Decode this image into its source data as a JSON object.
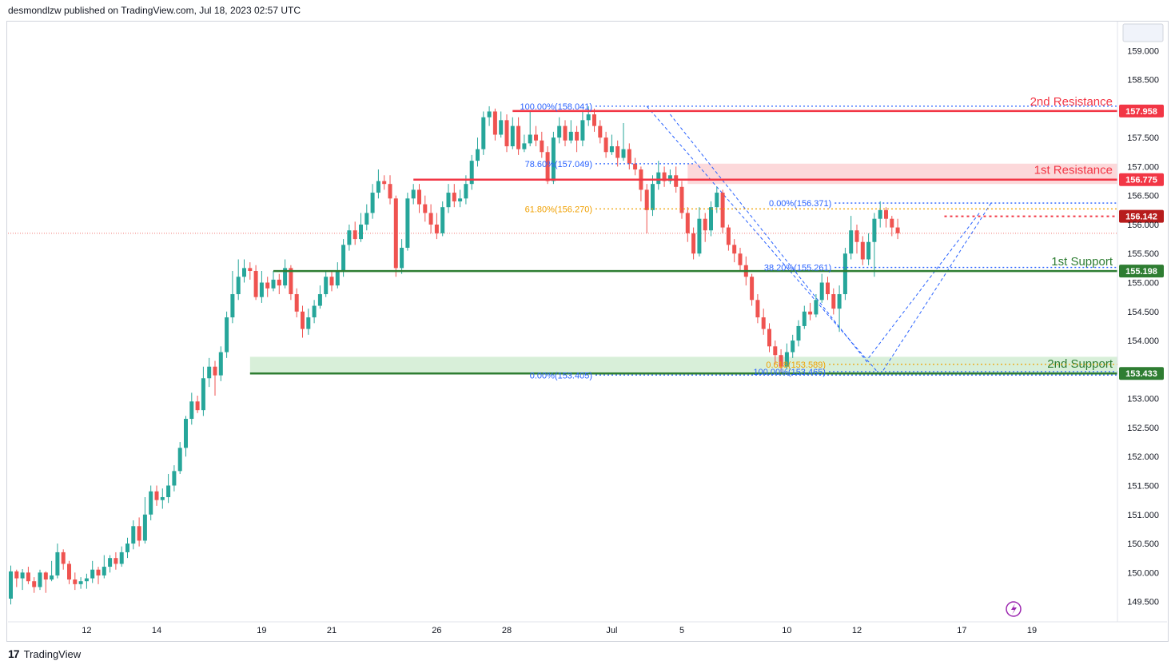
{
  "header": {
    "publisher_line": "desmondlzw published on TradingView.com, Jul 18, 2023 02:57 UTC"
  },
  "footer": {
    "brand": "TradingView",
    "logo_glyph": "17"
  },
  "colors": {
    "up": "#26a69a",
    "down": "#ef5350",
    "resistance": "#f23645",
    "support": "#2e7d32",
    "fib_blue": "#2962ff",
    "fib_orange": "#f0a000",
    "last_price": "#b71c1c",
    "resistance_zone": "#fcd8da",
    "support_zone": "#d8efd9"
  },
  "chart_data": {
    "type": "candlestick",
    "ylim": [
      149.15,
      159.5
    ],
    "y_ticks": [
      {
        "label": "159.000",
        "value": 159.0
      },
      {
        "label": "158.500",
        "value": 158.5
      },
      {
        "label": "158.000",
        "value": 158.0
      },
      {
        "label": "157.500",
        "value": 157.5
      },
      {
        "label": "157.000",
        "value": 157.0
      },
      {
        "label": "156.500",
        "value": 156.5
      },
      {
        "label": "156.000",
        "value": 156.0
      },
      {
        "label": "155.500",
        "value": 155.5
      },
      {
        "label": "155.000",
        "value": 155.0
      },
      {
        "label": "154.500",
        "value": 154.5
      },
      {
        "label": "154.000",
        "value": 154.0
      },
      {
        "label": "153.500",
        "value": 153.5
      },
      {
        "label": "153.000",
        "value": 153.0
      },
      {
        "label": "152.500",
        "value": 152.5
      },
      {
        "label": "152.000",
        "value": 152.0
      },
      {
        "label": "151.500",
        "value": 151.5
      },
      {
        "label": "151.000",
        "value": 151.0
      },
      {
        "label": "150.500",
        "value": 150.5
      },
      {
        "label": "150.000",
        "value": 150.0
      },
      {
        "label": "149.500",
        "value": 149.5
      }
    ],
    "x_ticks": [
      {
        "label": "12",
        "idx": 13
      },
      {
        "label": "14",
        "idx": 25
      },
      {
        "label": "19",
        "idx": 43
      },
      {
        "label": "21",
        "idx": 55
      },
      {
        "label": "26",
        "idx": 73
      },
      {
        "label": "28",
        "idx": 85
      },
      {
        "label": "Jul",
        "idx": 103
      },
      {
        "label": "5",
        "idx": 115
      },
      {
        "label": "10",
        "idx": 133
      },
      {
        "label": "12",
        "idx": 145
      },
      {
        "label": "17",
        "idx": 163
      },
      {
        "label": "19",
        "idx": 175
      }
    ],
    "levels": [
      {
        "name": "2nd Resistance",
        "price_label": "157.958",
        "value": 157.958,
        "kind": "resistance",
        "from_idx": 86
      },
      {
        "name": "1st Resistance",
        "price_label": "156.775",
        "value": 156.775,
        "kind": "resistance",
        "from_idx": 69
      },
      {
        "name": "1st Support",
        "price_label": "155.198",
        "value": 155.198,
        "kind": "support",
        "from_idx": 45
      },
      {
        "name": "2nd Support",
        "price_label": "153.433",
        "value": 153.433,
        "kind": "support",
        "from_idx": 41
      }
    ],
    "zones": [
      {
        "kind": "resistance",
        "from_idx": 116,
        "y_top": 157.05,
        "y_bottom": 156.7
      },
      {
        "kind": "support",
        "from_idx": 41,
        "y_top": 153.72,
        "y_bottom": 153.43
      }
    ],
    "last_price": {
      "label": "156.142",
      "value": 156.142,
      "from_idx": 160
    },
    "current_close_line": 155.85,
    "fib_labels": [
      {
        "text": "100.00%(158.041)",
        "value": 158.041,
        "color": "blue",
        "idx": 95,
        "line_to": 999
      },
      {
        "text": "78.60%(157.049)",
        "value": 157.049,
        "color": "blue",
        "idx": 95,
        "line_to": 117
      },
      {
        "text": "61.80%(156.270)",
        "value": 156.27,
        "color": "orange",
        "idx": 95,
        "line_to": 999
      },
      {
        "text": "0.00%(156.371)",
        "value": 156.371,
        "color": "blue",
        "idx": 136,
        "line_to": 999
      },
      {
        "text": "38.20%(155.261)",
        "value": 155.261,
        "color": "blue",
        "idx": 136,
        "line_to": 999
      },
      {
        "text": "0.618(153.589)",
        "value": 153.589,
        "color": "orange",
        "idx": 135,
        "line_to": 999
      },
      {
        "text": "100.00%(153.465)",
        "value": 153.465,
        "color": "blue",
        "idx": 135,
        "line_to": 999
      },
      {
        "text": "0.00%(153.405)",
        "value": 153.405,
        "color": "blue",
        "idx": 95,
        "line_to": 999
      }
    ],
    "trendlines": [
      {
        "from": [
          109,
          158.041
        ],
        "to": [
          149,
          153.405
        ]
      },
      {
        "from": [
          113,
          157.9
        ],
        "to": [
          147,
          153.6
        ]
      },
      {
        "from": [
          149,
          153.405
        ],
        "to": [
          168,
          156.371
        ]
      },
      {
        "from": [
          147,
          153.7
        ],
        "to": [
          166,
          156.2
        ]
      }
    ],
    "candles": [
      [
        149.55,
        150.02,
        150.12,
        149.45
      ],
      [
        150.02,
        149.9,
        150.05,
        149.75
      ],
      [
        149.9,
        150.0,
        150.06,
        149.7
      ],
      [
        150.0,
        149.85,
        150.1,
        149.8
      ],
      [
        149.85,
        149.75,
        149.92,
        149.65
      ],
      [
        149.75,
        150.0,
        150.05,
        149.7
      ],
      [
        150.0,
        149.88,
        150.02,
        149.65
      ],
      [
        149.88,
        149.95,
        150.2,
        149.85
      ],
      [
        149.95,
        150.35,
        150.5,
        149.9
      ],
      [
        150.35,
        150.15,
        150.4,
        150.05
      ],
      [
        150.15,
        149.88,
        150.2,
        149.8
      ],
      [
        149.88,
        149.8,
        150.0,
        149.7
      ],
      [
        149.8,
        149.85,
        149.92,
        149.72
      ],
      [
        149.85,
        149.9,
        149.98,
        149.72
      ],
      [
        149.9,
        150.05,
        150.2,
        149.82
      ],
      [
        150.05,
        149.95,
        150.1,
        149.8
      ],
      [
        149.95,
        150.1,
        150.3,
        149.9
      ],
      [
        150.1,
        150.25,
        150.3,
        150.0
      ],
      [
        150.25,
        150.15,
        150.35,
        150.05
      ],
      [
        150.15,
        150.35,
        150.45,
        150.1
      ],
      [
        150.35,
        150.5,
        150.6,
        150.25
      ],
      [
        150.5,
        150.8,
        150.9,
        150.4
      ],
      [
        150.8,
        150.55,
        150.95,
        150.45
      ],
      [
        150.55,
        151.0,
        151.3,
        150.5
      ],
      [
        151.0,
        151.4,
        151.5,
        150.9
      ],
      [
        151.4,
        151.25,
        151.5,
        151.15
      ],
      [
        151.25,
        151.3,
        151.45,
        151.1
      ],
      [
        151.3,
        151.5,
        151.7,
        151.2
      ],
      [
        151.5,
        151.75,
        151.85,
        151.4
      ],
      [
        151.75,
        152.15,
        152.25,
        151.7
      ],
      [
        152.15,
        152.65,
        152.7,
        152.0
      ],
      [
        152.65,
        152.95,
        153.1,
        152.55
      ],
      [
        152.95,
        152.8,
        153.05,
        152.75
      ],
      [
        152.8,
        153.35,
        153.55,
        152.7
      ],
      [
        153.35,
        153.55,
        153.7,
        153.2
      ],
      [
        153.55,
        153.4,
        153.65,
        153.05
      ],
      [
        153.4,
        153.8,
        153.9,
        153.3
      ],
      [
        153.8,
        154.4,
        154.5,
        153.7
      ],
      [
        154.4,
        154.8,
        155.2,
        154.3
      ],
      [
        154.8,
        155.1,
        155.4,
        154.7
      ],
      [
        155.1,
        155.25,
        155.4,
        155.0
      ],
      [
        155.25,
        155.2,
        155.35,
        155.05
      ],
      [
        155.2,
        154.75,
        155.3,
        154.7
      ],
      [
        154.75,
        155.0,
        155.2,
        154.65
      ],
      [
        155.0,
        154.9,
        155.1,
        154.75
      ],
      [
        154.9,
        155.05,
        155.2,
        154.85
      ],
      [
        155.05,
        154.95,
        155.15,
        154.8
      ],
      [
        154.95,
        155.25,
        155.4,
        154.9
      ],
      [
        155.25,
        154.8,
        155.3,
        154.7
      ],
      [
        154.8,
        154.5,
        154.9,
        154.4
      ],
      [
        154.5,
        154.2,
        154.6,
        154.05
      ],
      [
        154.2,
        154.4,
        154.55,
        154.1
      ],
      [
        154.4,
        154.6,
        154.7,
        154.3
      ],
      [
        154.6,
        154.8,
        154.95,
        154.55
      ],
      [
        154.8,
        155.1,
        155.2,
        154.75
      ],
      [
        155.1,
        154.95,
        155.2,
        154.85
      ],
      [
        154.95,
        155.2,
        155.35,
        154.9
      ],
      [
        155.2,
        155.65,
        155.75,
        155.1
      ],
      [
        155.65,
        155.9,
        156.0,
        155.55
      ],
      [
        155.9,
        155.75,
        156.05,
        155.65
      ],
      [
        155.75,
        156.0,
        156.2,
        155.7
      ],
      [
        156.0,
        156.2,
        156.35,
        155.9
      ],
      [
        156.2,
        156.55,
        156.7,
        156.1
      ],
      [
        156.55,
        156.75,
        156.95,
        156.45
      ],
      [
        156.75,
        156.7,
        156.85,
        156.6
      ],
      [
        156.7,
        156.45,
        156.85,
        156.35
      ],
      [
        156.45,
        155.25,
        156.5,
        155.1
      ],
      [
        155.25,
        155.6,
        155.75,
        155.15
      ],
      [
        155.6,
        156.45,
        156.55,
        155.55
      ],
      [
        156.45,
        156.6,
        156.7,
        156.35
      ],
      [
        156.6,
        156.35,
        156.7,
        156.2
      ],
      [
        156.35,
        156.2,
        156.5,
        156.05
      ],
      [
        156.2,
        156.0,
        156.35,
        155.85
      ],
      [
        156.0,
        155.85,
        156.2,
        155.75
      ],
      [
        155.85,
        156.3,
        156.4,
        155.8
      ],
      [
        156.3,
        156.55,
        156.7,
        156.2
      ],
      [
        156.55,
        156.4,
        156.7,
        156.3
      ],
      [
        156.4,
        156.45,
        156.6,
        156.3
      ],
      [
        156.45,
        156.7,
        156.85,
        156.35
      ],
      [
        156.7,
        157.1,
        157.2,
        156.6
      ],
      [
        157.1,
        157.3,
        157.5,
        157.0
      ],
      [
        157.3,
        157.85,
        157.95,
        157.2
      ],
      [
        157.85,
        157.95,
        158.04,
        157.7
      ],
      [
        157.95,
        157.55,
        158.0,
        157.45
      ],
      [
        157.55,
        157.8,
        157.95,
        157.5
      ],
      [
        157.8,
        157.35,
        157.9,
        157.25
      ],
      [
        157.35,
        157.7,
        157.85,
        157.3
      ],
      [
        157.7,
        157.3,
        157.85,
        157.2
      ],
      [
        157.3,
        157.4,
        157.55,
        157.25
      ],
      [
        157.4,
        157.55,
        157.95,
        157.35
      ],
      [
        157.55,
        157.45,
        157.7,
        157.35
      ],
      [
        157.45,
        157.25,
        157.6,
        157.15
      ],
      [
        157.25,
        156.75,
        157.35,
        156.7
      ],
      [
        156.75,
        157.5,
        157.6,
        156.7
      ],
      [
        157.5,
        157.7,
        157.85,
        157.4
      ],
      [
        157.7,
        157.45,
        157.8,
        157.35
      ],
      [
        157.45,
        157.6,
        157.8,
        157.4
      ],
      [
        157.6,
        157.45,
        157.7,
        157.25
      ],
      [
        157.45,
        157.8,
        157.95,
        157.35
      ],
      [
        157.8,
        157.9,
        158.04,
        157.7
      ],
      [
        157.9,
        157.7,
        158.0,
        157.6
      ],
      [
        157.7,
        157.5,
        157.8,
        157.4
      ],
      [
        157.5,
        157.25,
        157.6,
        157.15
      ],
      [
        157.25,
        157.35,
        157.55,
        157.2
      ],
      [
        157.35,
        157.15,
        157.45,
        157.0
      ],
      [
        157.15,
        157.3,
        157.75,
        157.1
      ],
      [
        157.3,
        157.05,
        157.4,
        156.95
      ],
      [
        157.05,
        156.95,
        157.15,
        156.85
      ],
      [
        156.95,
        156.6,
        157.0,
        156.4
      ],
      [
        156.6,
        156.25,
        156.7,
        155.85
      ],
      [
        156.25,
        156.7,
        156.85,
        156.15
      ],
      [
        156.7,
        156.9,
        157.1,
        156.6
      ],
      [
        156.9,
        156.75,
        157.0,
        156.65
      ],
      [
        156.75,
        156.85,
        156.95,
        156.7
      ],
      [
        156.85,
        156.65,
        157.0,
        156.55
      ],
      [
        156.65,
        156.2,
        156.75,
        156.1
      ],
      [
        156.2,
        155.85,
        156.3,
        155.7
      ],
      [
        155.85,
        155.5,
        155.95,
        155.4
      ],
      [
        155.5,
        156.1,
        156.3,
        155.45
      ],
      [
        156.1,
        155.9,
        156.2,
        155.7
      ],
      [
        155.9,
        156.3,
        156.4,
        155.8
      ],
      [
        156.3,
        156.55,
        156.65,
        156.2
      ],
      [
        156.55,
        155.95,
        156.6,
        155.85
      ],
      [
        155.95,
        155.65,
        156.0,
        155.55
      ],
      [
        155.65,
        155.5,
        155.75,
        155.35
      ],
      [
        155.5,
        155.3,
        155.6,
        155.2
      ],
      [
        155.3,
        155.1,
        155.45,
        154.95
      ],
      [
        155.1,
        154.7,
        155.15,
        154.6
      ],
      [
        154.7,
        154.4,
        154.8,
        154.3
      ],
      [
        154.4,
        154.2,
        154.55,
        154.1
      ],
      [
        154.2,
        153.9,
        154.3,
        153.8
      ],
      [
        153.9,
        153.75,
        154.0,
        153.6
      ],
      [
        153.75,
        153.55,
        153.85,
        153.42
      ],
      [
        153.55,
        153.8,
        153.95,
        153.5
      ],
      [
        153.8,
        154.0,
        154.1,
        153.7
      ],
      [
        154.0,
        154.25,
        154.35,
        153.9
      ],
      [
        154.25,
        154.5,
        154.6,
        154.2
      ],
      [
        154.5,
        154.45,
        154.65,
        154.35
      ],
      [
        154.45,
        154.7,
        154.8,
        154.4
      ],
      [
        154.7,
        155.0,
        155.15,
        154.65
      ],
      [
        155.0,
        154.8,
        155.1,
        154.7
      ],
      [
        154.8,
        154.55,
        154.9,
        154.45
      ],
      [
        154.55,
        154.8,
        154.95,
        154.15
      ],
      [
        154.8,
        155.5,
        155.6,
        154.7
      ],
      [
        155.5,
        155.9,
        156.15,
        155.4
      ],
      [
        155.9,
        155.7,
        156.0,
        155.5
      ],
      [
        155.7,
        155.4,
        155.8,
        155.3
      ],
      [
        155.4,
        155.7,
        155.85,
        155.3
      ],
      [
        155.7,
        156.1,
        156.2,
        155.1
      ],
      [
        156.1,
        156.25,
        156.4,
        155.95
      ],
      [
        156.25,
        156.1,
        156.3,
        155.95
      ],
      [
        156.1,
        155.95,
        156.15,
        155.8
      ],
      [
        155.95,
        155.85,
        156.1,
        155.75
      ]
    ]
  }
}
